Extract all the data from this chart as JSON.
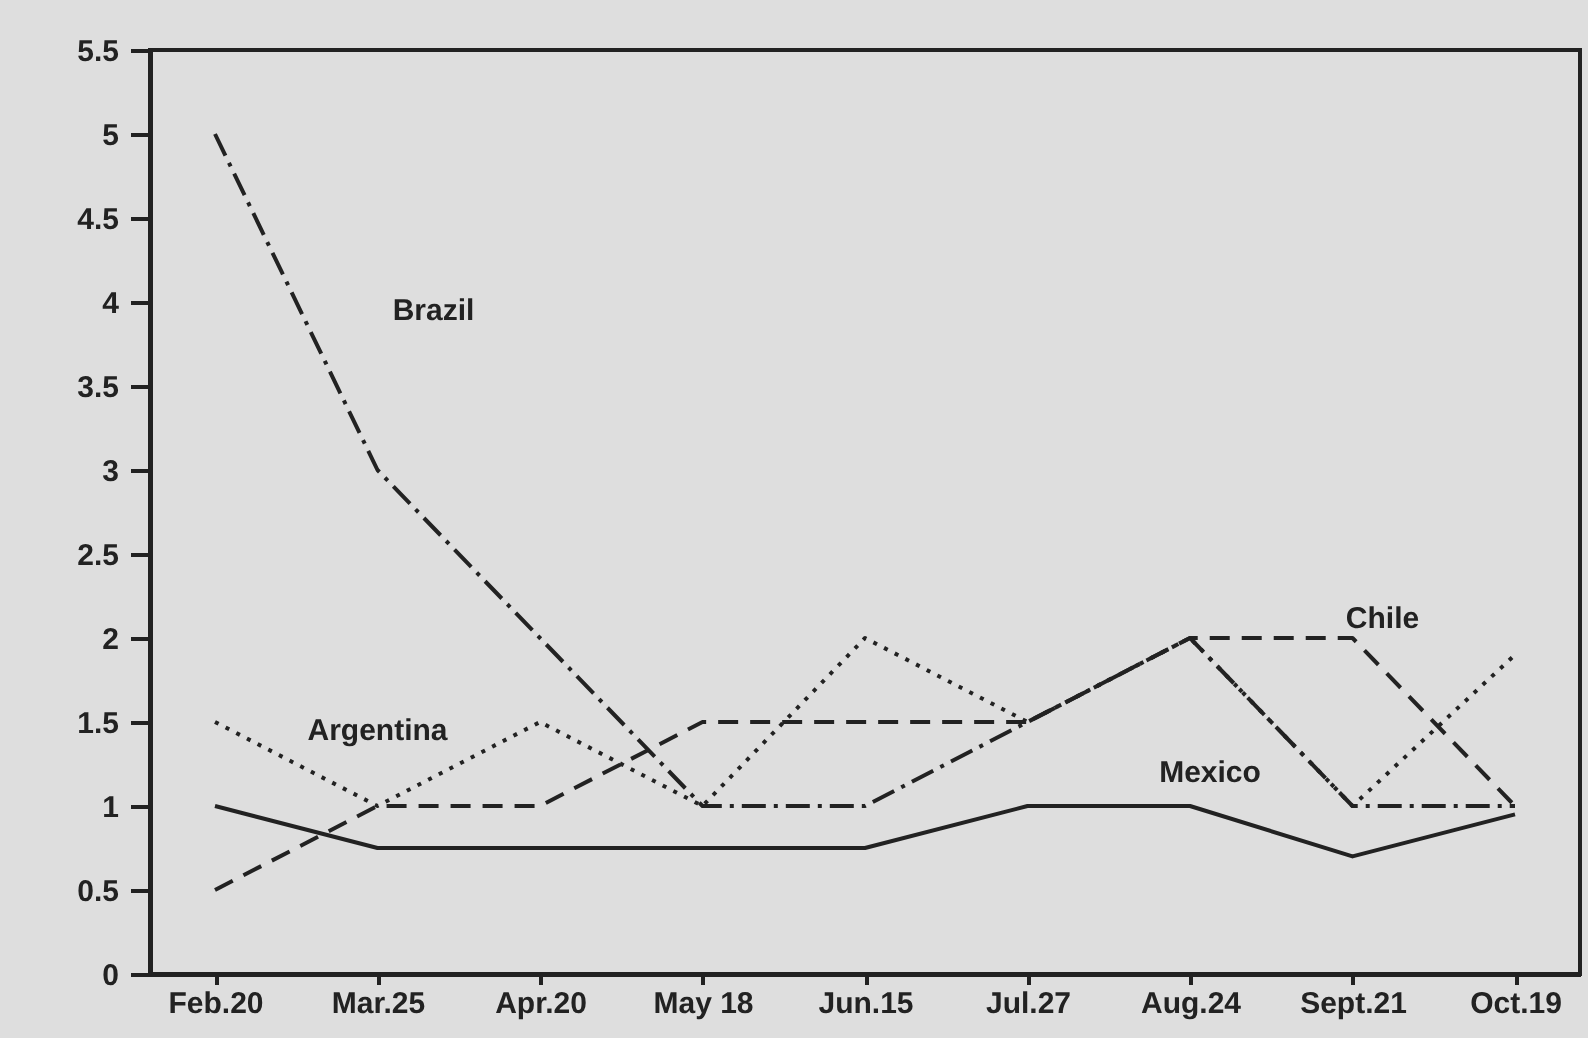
{
  "chart_data": {
    "type": "line",
    "categories": [
      "Feb.20",
      "Mar.25",
      "Apr.20",
      "May  18",
      "Jun.15",
      "Jul.27",
      "Aug.24",
      "Sept.21",
      "Oct.19"
    ],
    "series": [
      {
        "name": "Brazil",
        "color": "#222222",
        "line_style": "dashdot",
        "values": [
          5,
          3,
          2,
          1,
          1,
          1.5,
          2,
          1,
          1
        ]
      },
      {
        "name": "Argentina",
        "color": "#222222",
        "line_style": "dotted",
        "values": [
          1.5,
          1,
          1.5,
          1,
          2,
          1.5,
          2,
          1,
          1.9
        ]
      },
      {
        "name": "Mexico",
        "color": "#222222",
        "line_style": "solid",
        "values": [
          1,
          0.75,
          0.75,
          0.75,
          0.75,
          1,
          1,
          0.7,
          0.95
        ]
      },
      {
        "name": "Chile",
        "color": "#222222",
        "line_style": "dashed",
        "values": [
          0.5,
          1,
          1,
          1.5,
          1.5,
          1.5,
          2,
          2,
          1
        ]
      }
    ],
    "ylim": [
      0,
      5.5
    ],
    "yticks": [
      0,
      0.5,
      1,
      1.5,
      2,
      2.5,
      3,
      3.5,
      4,
      4.5,
      5,
      5.5
    ],
    "grid": false,
    "marker": "none"
  }
}
